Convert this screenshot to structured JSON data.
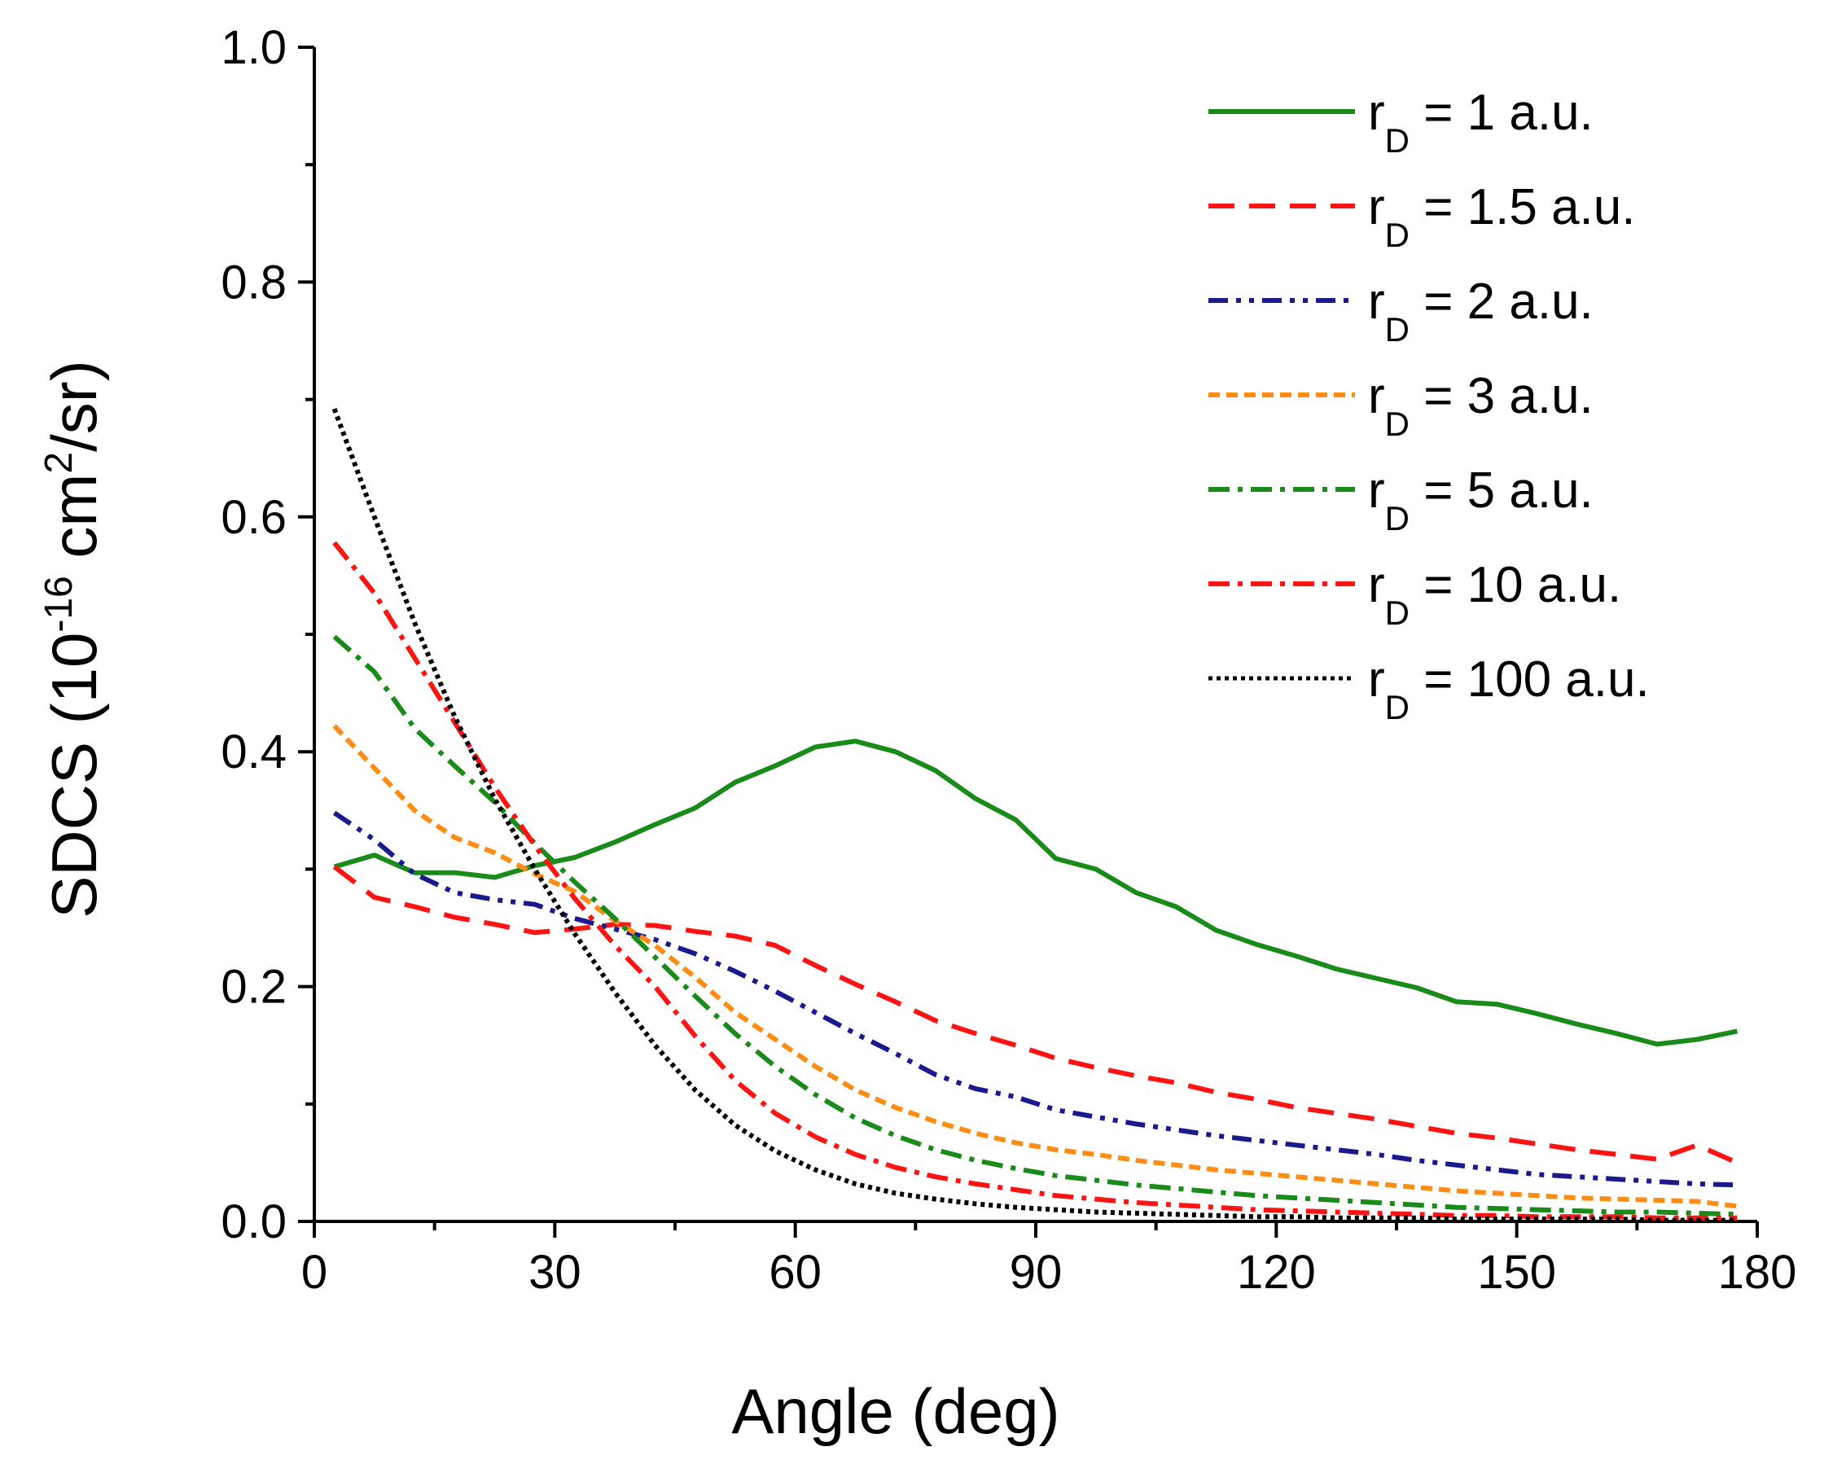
{
  "chart_data": {
    "type": "line",
    "title": "",
    "xlabel": "Angle (deg)",
    "ylabel": {
      "prefix": "SDCS (10",
      "exp": "-16",
      "mid": " cm",
      "sup2": "2",
      "suffix": "/sr)"
    },
    "xlim": [
      0,
      180
    ],
    "ylim": [
      0.0,
      1.0
    ],
    "x_ticks": [
      "0",
      "30",
      "60",
      "90",
      "120",
      "150",
      "180"
    ],
    "x_tick_values": [
      0,
      30,
      60,
      90,
      120,
      150,
      180
    ],
    "y_ticks": [
      "0.0",
      "0.2",
      "0.4",
      "0.6",
      "0.8",
      "1.0"
    ],
    "y_tick_values": [
      0.0,
      0.2,
      0.4,
      0.6,
      0.8,
      1.0
    ],
    "x": [
      2.5,
      7.5,
      12.5,
      17.5,
      22.5,
      27.5,
      32.5,
      37.5,
      42.5,
      47.5,
      52.5,
      57.5,
      62.5,
      67.5,
      72.5,
      77.5,
      82.5,
      87.5,
      92.5,
      97.5,
      102.5,
      107.5,
      112.5,
      117.5,
      122.5,
      127.5,
      132.5,
      137.5,
      142.5,
      147.5,
      152.5,
      157.5,
      162.5,
      167.5,
      172.5,
      177.5
    ],
    "legend_position": "top-right",
    "series": [
      {
        "name_base": "r",
        "name_sub": "D",
        "name_rest": " = 1 a.u.",
        "color": "#1a8a1a",
        "dash": "solid",
        "values": [
          0.302,
          0.312,
          0.297,
          0.297,
          0.293,
          0.303,
          0.31,
          0.323,
          0.338,
          0.352,
          0.374,
          0.388,
          0.404,
          0.409,
          0.4,
          0.384,
          0.36,
          0.342,
          0.309,
          0.3,
          0.28,
          0.268,
          0.248,
          0.236,
          0.226,
          0.215,
          0.207,
          0.199,
          0.187,
          0.185,
          0.177,
          0.168,
          0.16,
          0.151,
          0.155,
          0.162
        ]
      },
      {
        "name_base": "r",
        "name_sub": "D",
        "name_rest": " = 1.5 a.u.",
        "color": "#ff1414",
        "dash": "dash",
        "values": [
          0.302,
          0.276,
          0.268,
          0.259,
          0.253,
          0.246,
          0.249,
          0.253,
          0.252,
          0.247,
          0.243,
          0.235,
          0.218,
          0.202,
          0.187,
          0.171,
          0.16,
          0.15,
          0.139,
          0.131,
          0.124,
          0.118,
          0.11,
          0.104,
          0.097,
          0.092,
          0.087,
          0.081,
          0.075,
          0.071,
          0.066,
          0.061,
          0.057,
          0.053,
          0.065,
          0.05
        ]
      },
      {
        "name_base": "r",
        "name_sub": "D",
        "name_rest": " = 2 a.u.",
        "color": "#1a1a8c",
        "dash": "dashdotdot",
        "values": [
          0.348,
          0.325,
          0.296,
          0.28,
          0.274,
          0.27,
          0.258,
          0.249,
          0.24,
          0.228,
          0.213,
          0.196,
          0.178,
          0.16,
          0.143,
          0.125,
          0.113,
          0.106,
          0.095,
          0.089,
          0.083,
          0.078,
          0.073,
          0.069,
          0.065,
          0.061,
          0.057,
          0.052,
          0.048,
          0.044,
          0.04,
          0.038,
          0.036,
          0.034,
          0.032,
          0.031
        ]
      },
      {
        "name_base": "r",
        "name_sub": "D",
        "name_rest": " = 3 a.u.",
        "color": "#ff8c14",
        "dash": "shortdash",
        "values": [
          0.422,
          0.386,
          0.35,
          0.327,
          0.314,
          0.296,
          0.281,
          0.256,
          0.235,
          0.208,
          0.178,
          0.155,
          0.132,
          0.112,
          0.097,
          0.085,
          0.075,
          0.067,
          0.061,
          0.057,
          0.052,
          0.048,
          0.044,
          0.041,
          0.038,
          0.035,
          0.032,
          0.029,
          0.026,
          0.024,
          0.022,
          0.02,
          0.019,
          0.018,
          0.017,
          0.013
        ]
      },
      {
        "name_base": "r",
        "name_sub": "D",
        "name_rest": " = 5 a.u.",
        "color": "#1a8a1a",
        "dash": "dashdot",
        "values": [
          0.498,
          0.468,
          0.42,
          0.388,
          0.357,
          0.322,
          0.289,
          0.258,
          0.225,
          0.192,
          0.16,
          0.132,
          0.108,
          0.088,
          0.073,
          0.061,
          0.052,
          0.045,
          0.039,
          0.035,
          0.031,
          0.028,
          0.025,
          0.022,
          0.02,
          0.018,
          0.016,
          0.014,
          0.012,
          0.011,
          0.01,
          0.009,
          0.008,
          0.008,
          0.007,
          0.006
        ]
      },
      {
        "name_base": "r",
        "name_sub": "D",
        "name_rest": " = 10 a.u.",
        "color": "#ff1414",
        "dash": "dashdot",
        "values": [
          0.578,
          0.535,
          0.48,
          0.425,
          0.37,
          0.32,
          0.275,
          0.235,
          0.2,
          0.158,
          0.12,
          0.092,
          0.072,
          0.057,
          0.046,
          0.038,
          0.032,
          0.027,
          0.022,
          0.019,
          0.016,
          0.014,
          0.012,
          0.01,
          0.009,
          0.008,
          0.007,
          0.006,
          0.005,
          0.005,
          0.004,
          0.004,
          0.004,
          0.003,
          0.003,
          0.003
        ]
      },
      {
        "name_base": "r",
        "name_sub": "D",
        "name_rest": " = 100 a.u.",
        "color": "#000000",
        "dash": "dot",
        "values": [
          0.692,
          0.6,
          0.51,
          0.43,
          0.36,
          0.3,
          0.245,
          0.195,
          0.15,
          0.112,
          0.082,
          0.06,
          0.044,
          0.032,
          0.024,
          0.019,
          0.015,
          0.012,
          0.01,
          0.008,
          0.007,
          0.006,
          0.005,
          0.004,
          0.004,
          0.003,
          0.003,
          0.003,
          0.002,
          0.002,
          0.002,
          0.002,
          0.002,
          0.001,
          0.001,
          0.001
        ]
      }
    ]
  }
}
